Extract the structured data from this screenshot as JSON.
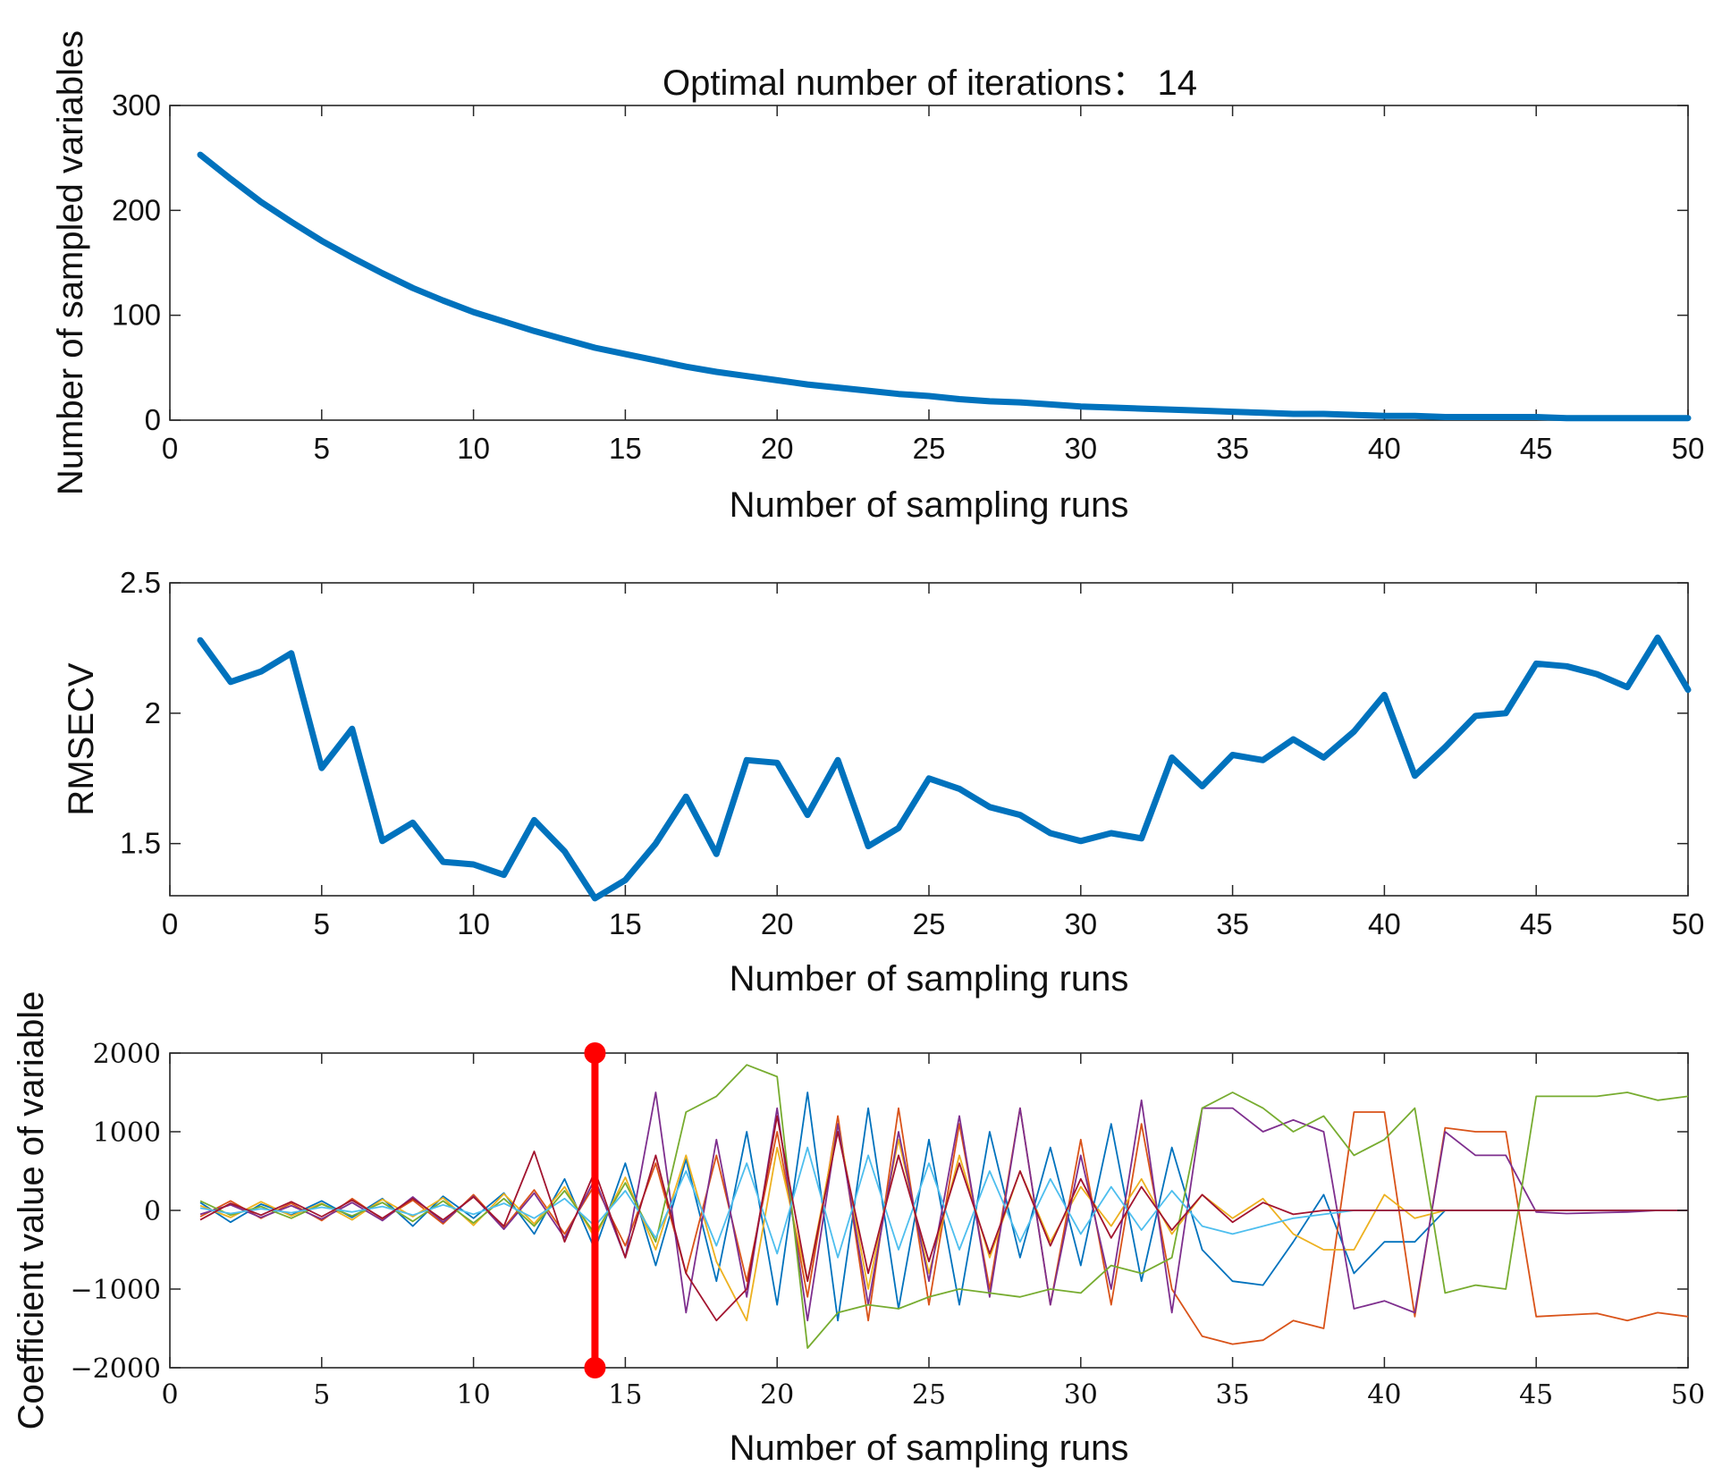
{
  "chart_data": [
    {
      "type": "line",
      "title": "Optimal number of iterations： 14",
      "xlabel": "Number of sampling runs",
      "ylabel": "Number of sampled variables",
      "xlim": [
        0,
        50
      ],
      "ylim": [
        0,
        300
      ],
      "xticks": [
        0,
        5,
        10,
        15,
        20,
        25,
        30,
        35,
        40,
        45,
        50
      ],
      "yticks": [
        0,
        100,
        200,
        300
      ],
      "color": "#0072BD",
      "x": [
        1,
        2,
        3,
        4,
        5,
        6,
        7,
        8,
        9,
        10,
        11,
        12,
        13,
        14,
        15,
        16,
        17,
        18,
        19,
        20,
        21,
        22,
        23,
        24,
        25,
        26,
        27,
        28,
        29,
        30,
        31,
        32,
        33,
        34,
        35,
        36,
        37,
        38,
        39,
        40,
        41,
        42,
        43,
        44,
        45,
        46,
        47,
        48,
        49,
        50
      ],
      "y": [
        253,
        230,
        208,
        189,
        171,
        155,
        140,
        126,
        114,
        103,
        94,
        85,
        77,
        69,
        63,
        57,
        51,
        46,
        42,
        38,
        34,
        31,
        28,
        25,
        23,
        20,
        18,
        17,
        15,
        13,
        12,
        11,
        10,
        9,
        8,
        7,
        6,
        6,
        5,
        4,
        4,
        3,
        3,
        3,
        3,
        2,
        2,
        2,
        2,
        2
      ]
    },
    {
      "type": "line",
      "xlabel": "Number of sampling runs",
      "ylabel": "RMSECV",
      "xlim": [
        0,
        50
      ],
      "ylim": [
        1.3,
        2.5
      ],
      "xticks": [
        0,
        5,
        10,
        15,
        20,
        25,
        30,
        35,
        40,
        45,
        50
      ],
      "yticks": [
        1.5,
        2,
        2.5
      ],
      "color": "#0072BD",
      "x": [
        1,
        2,
        3,
        4,
        5,
        6,
        7,
        8,
        9,
        10,
        11,
        12,
        13,
        14,
        15,
        16,
        17,
        18,
        19,
        20,
        21,
        22,
        23,
        24,
        25,
        26,
        27,
        28,
        29,
        30,
        31,
        32,
        33,
        34,
        35,
        36,
        37,
        38,
        39,
        40,
        41,
        42,
        43,
        44,
        45,
        46,
        47,
        48,
        49,
        50
      ],
      "y": [
        2.28,
        2.12,
        2.16,
        2.23,
        1.79,
        1.94,
        1.51,
        1.58,
        1.43,
        1.42,
        1.38,
        1.59,
        1.47,
        1.29,
        1.36,
        1.5,
        1.68,
        1.46,
        1.82,
        1.81,
        1.61,
        1.82,
        1.49,
        1.56,
        1.75,
        1.71,
        1.64,
        1.61,
        1.54,
        1.51,
        1.54,
        1.52,
        1.83,
        1.72,
        1.84,
        1.82,
        1.9,
        1.83,
        1.93,
        2.07,
        1.76,
        1.87,
        1.99,
        2.0,
        2.19,
        2.18,
        2.15,
        2.1,
        2.29,
        2.09
      ]
    },
    {
      "type": "line",
      "xlabel": "Number of sampling runs",
      "ylabel": "Coefficient value of variable",
      "xlim": [
        0,
        50
      ],
      "ylim": [
        -2000,
        2000
      ],
      "xticks": [
        0,
        5,
        10,
        15,
        20,
        25,
        30,
        35,
        40,
        45,
        50
      ],
      "yticks": [
        -2000,
        -1000,
        0,
        1000,
        2000
      ],
      "series_colors": [
        "#0072BD",
        "#D95319",
        "#EDB120",
        "#7E2F8E",
        "#77AC30",
        "#4DBEEE",
        "#A2142F"
      ],
      "series": [
        {
          "values": [
            100,
            -150,
            80,
            -60,
            120,
            -90,
            150,
            -200,
            180,
            -100,
            220,
            -300,
            400,
            -500,
            600,
            -700,
            650,
            -900,
            1000,
            -1200,
            1500,
            -1400,
            1300,
            -1250,
            900,
            -1200,
            1000,
            -600,
            800,
            -700,
            1100,
            -900,
            800,
            -500,
            -900,
            -950,
            -400,
            200,
            -800,
            -400,
            -400,
            0,
            0,
            0,
            0,
            0,
            0,
            0,
            0,
            0
          ]
        },
        {
          "values": [
            -80,
            120,
            -100,
            90,
            -130,
            150,
            -110,
            130,
            -170,
            200,
            -220,
            260,
            -300,
            330,
            -450,
            600,
            -800,
            700,
            -900,
            1000,
            -1100,
            1200,
            -1400,
            1300,
            -1200,
            1100,
            -1000,
            1300,
            -1200,
            900,
            -1200,
            1100,
            -1000,
            -1600,
            -1700,
            -1650,
            -1400,
            -1500,
            1250,
            1250,
            -1350,
            1050,
            1000,
            1000,
            -1350,
            -1330,
            -1310,
            -1400,
            -1300,
            -1350
          ]
        },
        {
          "values": [
            60,
            -90,
            110,
            -70,
            90,
            -120,
            140,
            -80,
            160,
            -190,
            210,
            -170,
            300,
            -350,
            420,
            -500,
            700,
            -650,
            -1400,
            800,
            -900,
            1100,
            -1000,
            900,
            -800,
            700,
            -600,
            500,
            -400,
            300,
            -200,
            400,
            -300,
            200,
            -100,
            150,
            -300,
            -500,
            -500,
            200,
            -100,
            0,
            0,
            0,
            0,
            0,
            0,
            0,
            0,
            0
          ]
        },
        {
          "values": [
            -50,
            70,
            -90,
            60,
            -110,
            100,
            -130,
            170,
            -150,
            180,
            -240,
            220,
            -350,
            400,
            -600,
            1500,
            -1300,
            900,
            -1100,
            1300,
            -1400,
            1100,
            -1200,
            1000,
            -900,
            1200,
            -1100,
            1300,
            -1200,
            700,
            -1000,
            1400,
            -1300,
            1300,
            1300,
            1000,
            1150,
            1000,
            -1250,
            -1150,
            -1300,
            1000,
            700,
            700,
            -20,
            -40,
            -30,
            -20,
            0,
            0
          ]
        },
        {
          "values": [
            120,
            -60,
            50,
            -100,
            80,
            -70,
            100,
            -140,
            120,
            -160,
            150,
            -200,
            250,
            -300,
            350,
            -400,
            1250,
            1450,
            1850,
            1700,
            -1750,
            -1300,
            -1200,
            -1250,
            -1100,
            -1000,
            -1050,
            -1100,
            -1000,
            -1050,
            -700,
            -800,
            -600,
            1300,
            1500,
            1300,
            1000,
            1200,
            700,
            900,
            1300,
            -1050,
            -950,
            -1000,
            1450,
            1450,
            1450,
            1500,
            1400,
            1450
          ]
        },
        {
          "values": [
            30,
            -40,
            20,
            -30,
            40,
            -20,
            50,
            -60,
            70,
            -50,
            90,
            -100,
            150,
            -200,
            250,
            -350,
            500,
            -450,
            600,
            -550,
            800,
            -600,
            700,
            -500,
            600,
            -500,
            500,
            -400,
            400,
            -300,
            300,
            -250,
            250,
            -200,
            -300,
            -200,
            -100,
            -50,
            0,
            0,
            0,
            0,
            0,
            0,
            0,
            0,
            0,
            0,
            0,
            0
          ]
        },
        {
          "values": [
            -120,
            90,
            -60,
            110,
            -80,
            130,
            -100,
            150,
            -120,
            170,
            -200,
            750,
            -400,
            500,
            -600,
            700,
            -800,
            -1400,
            -1000,
            1200,
            -900,
            1000,
            -800,
            700,
            -650,
            600,
            -550,
            500,
            -450,
            400,
            -350,
            300,
            -250,
            200,
            -150,
            100,
            -50,
            0,
            0,
            0,
            0,
            0,
            0,
            0,
            0,
            0,
            0,
            0,
            0,
            0
          ]
        }
      ],
      "marker_line": {
        "x": 14,
        "y_from": -2000,
        "y_to": 2000,
        "color": "#FF0000"
      }
    }
  ]
}
